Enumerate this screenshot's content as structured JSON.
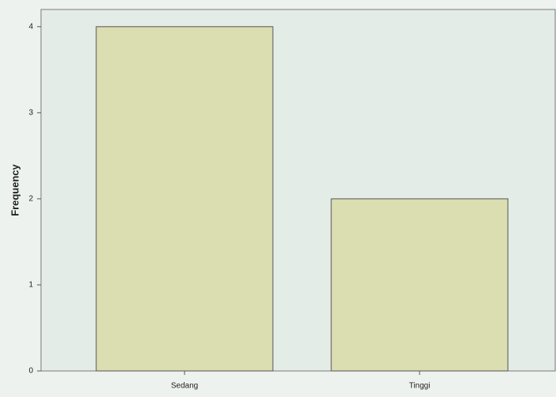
{
  "chart_data": {
    "type": "bar",
    "y_label": "Frequency",
    "categories": [
      "Sedang",
      "Tinggi"
    ],
    "values": [
      4,
      2
    ],
    "color": "#d8dca6",
    "ylim": [
      0,
      4.2
    ],
    "yticks": [
      0,
      1,
      2,
      3,
      4
    ],
    "grid": false
  }
}
